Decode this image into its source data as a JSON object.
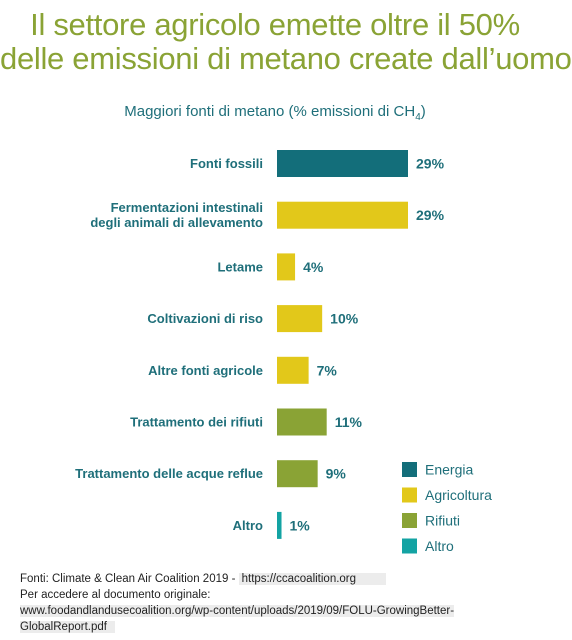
{
  "title": {
    "line1": "Il settore agricolo emette oltre il 50%",
    "line2": "delle emissioni di metano create dall’uomo"
  },
  "subtitle": {
    "text": "Maggiori fonti di metano (% emissioni di CH",
    "sub": "4",
    "close": ")"
  },
  "colors": {
    "Energia": "#136e7a",
    "Agricoltura": "#e2c81a",
    "Rifiuti": "#8aa335",
    "Altro": "#13a3a3",
    "text": "#1f6f7a",
    "title": "#8aa335"
  },
  "chart_data": {
    "type": "bar",
    "orientation": "horizontal",
    "title": "Il settore agricolo emette oltre il 50% delle emissioni di metano create dall’uomo",
    "subtitle": "Maggiori fonti di metano (% emissioni di CH4)",
    "unit": "%",
    "xlim": [
      0,
      29
    ],
    "grid": false,
    "legend_position": "bottom-right",
    "categories": [
      [
        "Fonti fossili"
      ],
      [
        "Fermentazioni intestinali",
        "degli animali di allevamento"
      ],
      [
        "Letame"
      ],
      [
        "Coltivazioni di riso"
      ],
      [
        "Altre fonti agricole"
      ],
      [
        "Trattamento dei rifiuti"
      ],
      [
        "Trattamento delle acque reflue"
      ],
      [
        "Altro"
      ]
    ],
    "values": [
      29,
      29,
      4,
      10,
      7,
      11,
      9,
      1
    ],
    "value_labels": [
      "29%",
      "29%",
      "4%",
      "10%",
      "7%",
      "11%",
      "9%",
      "1%"
    ],
    "groups": [
      "Energia",
      "Agricoltura",
      "Agricoltura",
      "Agricoltura",
      "Agricoltura",
      "Rifiuti",
      "Rifiuti",
      "Altro"
    ],
    "legend": [
      "Energia",
      "Agricoltura",
      "Rifiuti",
      "Altro"
    ]
  },
  "sources": {
    "line1": "Fonti: Climate & Clean Air Coalition 2019 - ",
    "link1": "https://ccacoalition.org",
    "line2": "Per accedere al documento originale:",
    "link2": "www.foodandlandusecoalition.org/wp-content/uploads/2019/09/FOLU-GrowingBetter-GlobalReport.pdf"
  }
}
